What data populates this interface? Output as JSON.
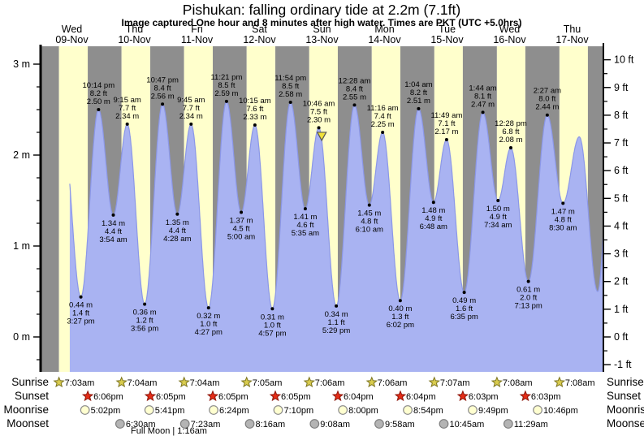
{
  "title": "Pishukan: falling  ordinary tide at 2.2m (7.1ft)",
  "subtitle": "Image captured One hour and 8 minutes after high water. Times are PKT (UTC +5.0hrs)",
  "chart_data": {
    "type": "area",
    "description": "Tide height curve over 9 days with labeled high/low extremes",
    "days": [
      {
        "weekday": "Wed",
        "date": "09-Nov"
      },
      {
        "weekday": "Thu",
        "date": "10-Nov"
      },
      {
        "weekday": "Fri",
        "date": "11-Nov"
      },
      {
        "weekday": "Sat",
        "date": "12-Nov"
      },
      {
        "weekday": "Sun",
        "date": "13-Nov"
      },
      {
        "weekday": "Mon",
        "date": "14-Nov"
      },
      {
        "weekday": "Tue",
        "date": "15-Nov"
      },
      {
        "weekday": "Wed",
        "date": "16-Nov"
      },
      {
        "weekday": "Thu",
        "date": "17-Nov"
      }
    ],
    "y_axis_left": {
      "unit": "m",
      "ticks": [
        {
          "value": 3,
          "label": "3 m"
        },
        {
          "value": 2,
          "label": "2 m"
        },
        {
          "value": 1,
          "label": "1 m"
        },
        {
          "value": 0,
          "label": "0 m"
        }
      ],
      "minor_step_m": 0.25
    },
    "y_axis_right": {
      "unit": "ft",
      "ticks": [
        {
          "value": 10,
          "label": "10 ft"
        },
        {
          "value": 9,
          "label": "9 ft"
        },
        {
          "value": 8,
          "label": "8 ft"
        },
        {
          "value": 7,
          "label": "7 ft"
        },
        {
          "value": 6,
          "label": "6 ft"
        },
        {
          "value": 5,
          "label": "5 ft"
        },
        {
          "value": 4,
          "label": "4 ft"
        },
        {
          "value": 3,
          "label": "3 ft"
        },
        {
          "value": 2,
          "label": "2 ft"
        },
        {
          "value": 1,
          "label": "1 ft"
        },
        {
          "value": 0,
          "label": "0 ft"
        },
        {
          "value": -1,
          "label": "-1 ft"
        }
      ],
      "minor_step_ft": 0.5
    },
    "ylim_m": [
      -0.38,
      3.2
    ],
    "extremes": [
      {
        "type": "low",
        "day": 0,
        "time": "3:27 pm",
        "ft": "1.4 ft",
        "m": "0.44 m"
      },
      {
        "type": "high",
        "day": 0,
        "time": "10:14 pm",
        "ft": "8.2 ft",
        "m": "2.50 m"
      },
      {
        "type": "low",
        "day": 1,
        "time": "3:54 am",
        "ft": "4.4 ft",
        "m": "1.34 m"
      },
      {
        "type": "high",
        "day": 1,
        "time": "9:15 am",
        "ft": "7.7 ft",
        "m": "2.34 m"
      },
      {
        "type": "low",
        "day": 1,
        "time": "3:56 pm",
        "ft": "1.2 ft",
        "m": "0.36 m"
      },
      {
        "type": "high",
        "day": 1,
        "time": "10:47 pm",
        "ft": "8.4 ft",
        "m": "2.56 m"
      },
      {
        "type": "low",
        "day": 2,
        "time": "4:28 am",
        "ft": "4.4 ft",
        "m": "1.35 m"
      },
      {
        "type": "high",
        "day": 2,
        "time": "9:45 am",
        "ft": "7.7 ft",
        "m": "2.34 m"
      },
      {
        "type": "low",
        "day": 2,
        "time": "4:27 pm",
        "ft": "1.0 ft",
        "m": "0.32 m"
      },
      {
        "type": "high",
        "day": 2,
        "time": "11:21 pm",
        "ft": "8.5 ft",
        "m": "2.59 m"
      },
      {
        "type": "low",
        "day": 3,
        "time": "5:00 am",
        "ft": "4.5 ft",
        "m": "1.37 m"
      },
      {
        "type": "high",
        "day": 3,
        "time": "10:15 am",
        "ft": "7.6 ft",
        "m": "2.33 m"
      },
      {
        "type": "low",
        "day": 3,
        "time": "4:57 pm",
        "ft": "1.0 ft",
        "m": "0.31 m"
      },
      {
        "type": "high",
        "day": 3,
        "time": "11:54 pm",
        "ft": "8.5 ft",
        "m": "2.58 m"
      },
      {
        "type": "low",
        "day": 4,
        "time": "5:35 am",
        "ft": "4.6 ft",
        "m": "1.41 m"
      },
      {
        "type": "high",
        "day": 4,
        "time": "10:46 am",
        "ft": "7.5 ft",
        "m": "2.30 m"
      },
      {
        "type": "low",
        "day": 4,
        "time": "5:29 pm",
        "ft": "1.1 ft",
        "m": "0.34 m"
      },
      {
        "type": "high",
        "day": 5,
        "time": "12:28 am",
        "ft": "8.4 ft",
        "m": "2.55 m"
      },
      {
        "type": "low",
        "day": 5,
        "time": "6:10 am",
        "ft": "4.8 ft",
        "m": "1.45 m"
      },
      {
        "type": "high",
        "day": 5,
        "time": "11:16 am",
        "ft": "7.4 ft",
        "m": "2.25 m"
      },
      {
        "type": "low",
        "day": 5,
        "time": "6:02 pm",
        "ft": "1.3 ft",
        "m": "0.40 m"
      },
      {
        "type": "high",
        "day": 6,
        "time": "1:04 am",
        "ft": "8.2 ft",
        "m": "2.51 m"
      },
      {
        "type": "low",
        "day": 6,
        "time": "6:48 am",
        "ft": "4.9 ft",
        "m": "1.48 m"
      },
      {
        "type": "high",
        "day": 6,
        "time": "11:49 am",
        "ft": "7.1 ft",
        "m": "2.17 m"
      },
      {
        "type": "low",
        "day": 6,
        "time": "6:35 pm",
        "ft": "1.6 ft",
        "m": "0.49 m"
      },
      {
        "type": "high",
        "day": 7,
        "time": "1:44 am",
        "ft": "8.1 ft",
        "m": "2.47 m"
      },
      {
        "type": "low",
        "day": 7,
        "time": "7:34 am",
        "ft": "4.9 ft",
        "m": "1.50 m"
      },
      {
        "type": "high",
        "day": 7,
        "time": "12:28 pm",
        "ft": "6.8 ft",
        "m": "2.08 m"
      },
      {
        "type": "low",
        "day": 7,
        "time": "7:13 pm",
        "ft": "2.0 ft",
        "m": "0.61 m"
      },
      {
        "type": "high",
        "day": 8,
        "time": "2:27 am",
        "ft": "8.0 ft",
        "m": "2.44 m"
      },
      {
        "type": "low",
        "day": 8,
        "time": "8:30 am",
        "ft": "4.8 ft",
        "m": "1.47 m"
      }
    ],
    "curve": {
      "lead": {
        "day": 0,
        "hour": 8.4,
        "m": 2.33
      },
      "start_hour": 11.2,
      "tail": [
        {
          "day": 8,
          "hour": 14.75,
          "m": 2.2
        },
        {
          "day": 8,
          "hour": 21.8,
          "m": 0.5
        },
        {
          "day": 9,
          "hour": 3.2,
          "m": 2.4
        }
      ]
    },
    "current_marker": {
      "day": 4,
      "hour": 11.9,
      "m": 2.17
    },
    "colors": {
      "night": "#8e8e8e",
      "daylight": "#ffffcc",
      "tide_fill": "#a9b3f2",
      "tide_edge": "#8b97e8",
      "day_label_red": "#e03b2a",
      "marker_fill": "#f0e13a",
      "marker_edge": "#555555",
      "sunrise_star": "#d9cc4e",
      "sunrise_star_edge": "#7c741f",
      "sunset_star": "#e52c16",
      "sunset_star_edge": "#8c150a",
      "moonrise_fill": "#ffffd0",
      "moonrise_edge": "#8a8a8a",
      "moonset_fill": "#b4b4b4",
      "moonset_edge": "#7e7e7e"
    }
  },
  "astro": {
    "rows": [
      {
        "id": "sunrise",
        "label": "Sunrise",
        "times": [
          {
            "day": 0,
            "time": "7:03am"
          },
          {
            "day": 1,
            "time": "7:04am"
          },
          {
            "day": 2,
            "time": "7:04am"
          },
          {
            "day": 3,
            "time": "7:05am"
          },
          {
            "day": 4,
            "time": "7:06am"
          },
          {
            "day": 5,
            "time": "7:06am"
          },
          {
            "day": 6,
            "time": "7:07am"
          },
          {
            "day": 7,
            "time": "7:08am"
          },
          {
            "day": 8,
            "time": "7:08am"
          }
        ]
      },
      {
        "id": "sunset",
        "label": "Sunset",
        "times": [
          {
            "day": 0,
            "time": "6:06pm"
          },
          {
            "day": 1,
            "time": "6:05pm"
          },
          {
            "day": 2,
            "time": "6:05pm"
          },
          {
            "day": 3,
            "time": "6:05pm"
          },
          {
            "day": 4,
            "time": "6:04pm"
          },
          {
            "day": 5,
            "time": "6:04pm"
          },
          {
            "day": 6,
            "time": "6:03pm"
          },
          {
            "day": 7,
            "time": "6:03pm"
          }
        ]
      },
      {
        "id": "moonrise",
        "label": "Moonrise",
        "times": [
          {
            "day": 0,
            "time": "5:02pm"
          },
          {
            "day": 1,
            "time": "5:41pm"
          },
          {
            "day": 2,
            "time": "6:24pm"
          },
          {
            "day": 3,
            "time": "7:10pm"
          },
          {
            "day": 4,
            "time": "8:00pm"
          },
          {
            "day": 5,
            "time": "8:54pm"
          },
          {
            "day": 6,
            "time": "9:49pm"
          },
          {
            "day": 7,
            "time": "10:46pm"
          }
        ]
      },
      {
        "id": "moonset",
        "label": "Moonset",
        "times": [
          {
            "day": 1,
            "time": "6:30am"
          },
          {
            "day": 2,
            "time": "7:23am"
          },
          {
            "day": 3,
            "time": "8:16am"
          },
          {
            "day": 4,
            "time": "9:08am"
          },
          {
            "day": 5,
            "time": "9:58am"
          },
          {
            "day": 6,
            "time": "10:45am"
          },
          {
            "day": 7,
            "time": "11:29am"
          }
        ]
      }
    ],
    "footnote": {
      "label": "Full Moon | 1:16am",
      "day": 2,
      "hour": 1.27
    }
  }
}
